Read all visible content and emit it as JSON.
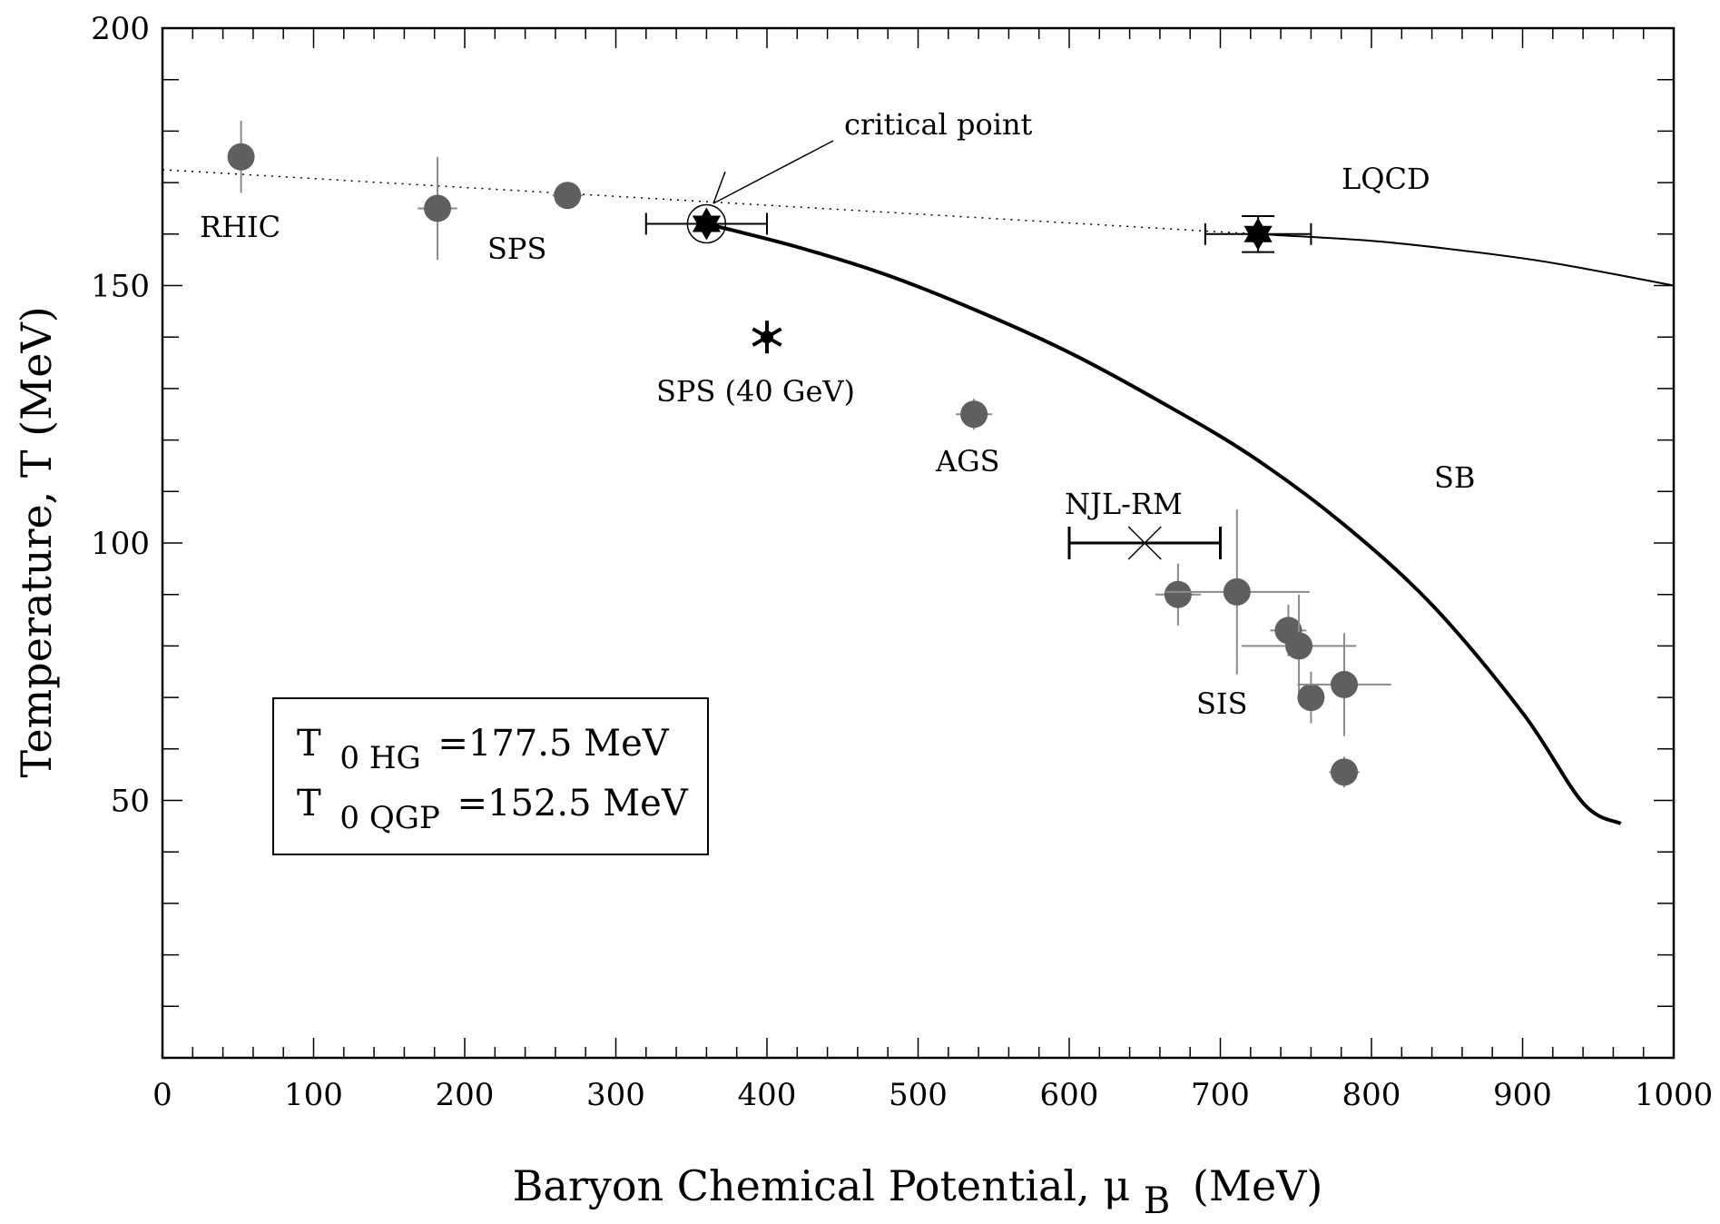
{
  "chart_data": {
    "type": "scatter",
    "title": "",
    "xlabel": "Baryon Chemical Potential, μ",
    "xlabel_sub": "B",
    "xlabel_unit": "(MeV)",
    "ylabel": "Temperature, T (MeV)",
    "xlim": [
      0,
      1000
    ],
    "ylim": [
      0,
      200
    ],
    "x_ticks": [
      0,
      100,
      200,
      300,
      400,
      500,
      600,
      700,
      800,
      900,
      1000
    ],
    "y_ticks": [
      50,
      100,
      150,
      200
    ],
    "colors": {
      "data_points": "#5f5f5f",
      "error_bars": "#8a8a8a",
      "curves": "#000000"
    },
    "freezeout_points": [
      {
        "x": 52,
        "y": 175,
        "xerr": 8,
        "yerr_low": 7,
        "yerr_high": 7
      },
      {
        "x": 182,
        "y": 165,
        "xerr": 13,
        "yerr_low": 10,
        "yerr_high": 10
      },
      {
        "x": 268,
        "y": 167.5,
        "xerr": 10,
        "yerr_low": 2,
        "yerr_high": 2
      },
      {
        "x": 537,
        "y": 125,
        "xerr": 12,
        "yerr_low": 3,
        "yerr_high": 3
      },
      {
        "x": 672,
        "y": 90,
        "xerr": 15,
        "yerr_low": 6,
        "yerr_high": 6
      },
      {
        "x": 711,
        "y": 90.5,
        "xerr": 48,
        "yerr_low": 16,
        "yerr_high": 16
      },
      {
        "x": 745,
        "y": 83,
        "xerr": 12,
        "yerr_low": 5,
        "yerr_high": 5
      },
      {
        "x": 752,
        "y": 80,
        "xerr": 38,
        "yerr_low": 10,
        "yerr_high": 10
      },
      {
        "x": 760,
        "y": 70,
        "xerr": 8,
        "yerr_low": 5,
        "yerr_high": 5
      },
      {
        "x": 782,
        "y": 72.5,
        "xerr": 31,
        "yerr_low": 10,
        "yerr_high": 10
      },
      {
        "x": 782,
        "y": 55.5,
        "xerr": 10,
        "yerr_low": 3,
        "yerr_high": 3
      }
    ],
    "critical_points": [
      {
        "x": 360,
        "y": 162,
        "xerr_low": 40,
        "xerr_high": 40,
        "yerr": 0,
        "circled": true
      },
      {
        "x": 725,
        "y": 160,
        "xerr_low": 35,
        "xerr_high": 35,
        "yerr": 3.5,
        "circled": false
      }
    ],
    "sps40_point": {
      "x": 400,
      "y": 140
    },
    "njl_rm": {
      "x": 650,
      "y": 100,
      "xmin": 600,
      "xmax": 700
    },
    "freezeout_line": {
      "x": [
        0,
        725
      ],
      "y": [
        172.5,
        160
      ]
    },
    "sb_curve": {
      "x": [
        360,
        420,
        480,
        540,
        600,
        660,
        720,
        780,
        840,
        900,
        940,
        965
      ],
      "y": [
        162,
        157.5,
        152,
        145,
        137,
        127.5,
        117,
        104,
        88,
        67,
        49.5,
        45.5
      ]
    },
    "lqcd_curve": {
      "x": [
        725,
        800,
        860,
        920,
        1000
      ],
      "y": [
        160,
        158.7,
        156.8,
        154.4,
        150
      ]
    },
    "labels": {
      "rhic": "RHIC",
      "sps": "SPS",
      "sps40": "SPS (40 GeV)",
      "ags": "AGS",
      "njl": "NJL-RM",
      "sis": "SIS",
      "lqcd": "LQCD",
      "sb": "SB",
      "critical_point": "critical point"
    },
    "legend": {
      "line1": {
        "main": "T",
        "sub": "0 HG",
        "value": "=177.5 MeV"
      },
      "line2": {
        "main": "T",
        "sub": "0 QGP",
        "value": "=152.5 MeV"
      }
    }
  }
}
